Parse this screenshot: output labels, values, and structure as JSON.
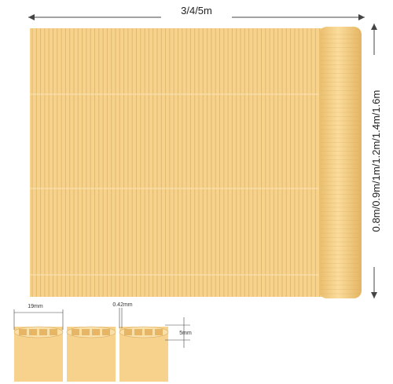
{
  "dimensions": {
    "length": "3/4/5m",
    "height": "0.8m/0.9m/1m/1.2m/1.4m/1.6m"
  },
  "cross_section": {
    "width": "19mm",
    "wall": "0.42mm",
    "depth": "5mm"
  }
}
